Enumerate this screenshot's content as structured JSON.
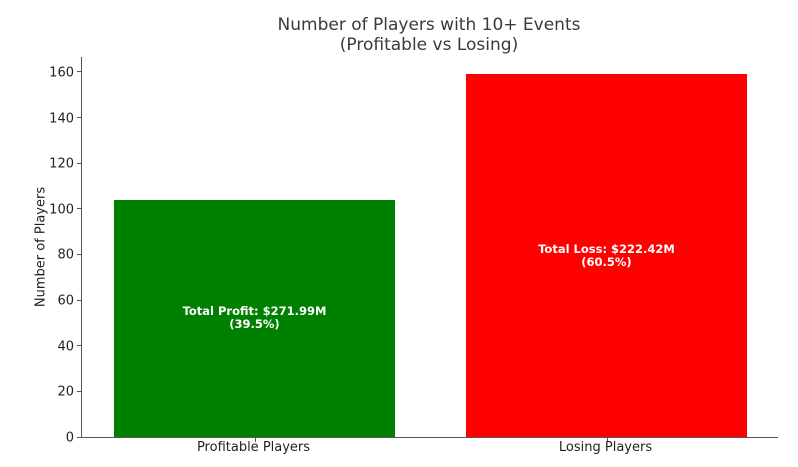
{
  "chart_data": {
    "type": "bar",
    "title": "Number of Players with 10+ Events\n(Profitable vs Losing)",
    "title_lines": [
      "Number of Players with 10+ Events",
      "(Profitable vs Losing)"
    ],
    "xlabel": "",
    "ylabel": "Number of Players",
    "categories": [
      "Profitable Players",
      "Losing Players"
    ],
    "values": [
      104,
      159
    ],
    "colors": [
      "#008000",
      "#ff0000"
    ],
    "annotations": [
      {
        "line1": "Total Profit: $271.99M",
        "line2": "(39.5%)"
      },
      {
        "line1": "Total Loss: $222.42M",
        "line2": "(60.5%)"
      }
    ],
    "ylim": [
      0,
      167
    ],
    "yticks": [
      0,
      20,
      40,
      60,
      80,
      100,
      120,
      140,
      160
    ],
    "grid": false,
    "legend": null
  }
}
